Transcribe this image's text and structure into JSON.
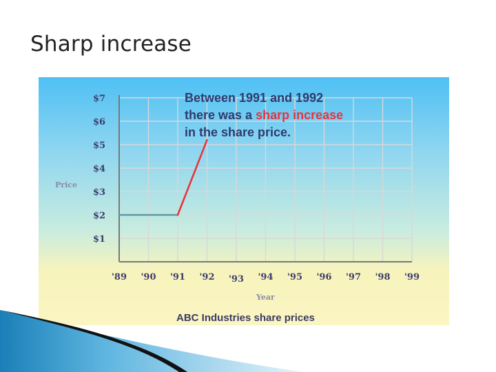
{
  "slide": {
    "title": "Sharp increase"
  },
  "chart_data": {
    "type": "line",
    "title": "ABC Industries share prices",
    "xlabel": "Year",
    "ylabel": "Price",
    "categories": [
      "'89",
      "'90",
      "'91",
      "'92",
      "'93",
      "'94",
      "'95",
      "'96",
      "'97",
      "'98",
      "'99"
    ],
    "y_tick_labels": [
      "$1",
      "$2",
      "$3",
      "$4",
      "$5",
      "$6",
      "$7"
    ],
    "ylim": [
      0,
      7
    ],
    "grid": true,
    "series": [
      {
        "segment": "flat",
        "color": "#5f9aa8",
        "points": [
          [
            1989,
            2
          ],
          [
            1991,
            2
          ]
        ]
      },
      {
        "segment": "rise",
        "color": "#e8343c",
        "points": [
          [
            1991,
            2
          ],
          [
            1992,
            5.2
          ]
        ]
      }
    ],
    "annotation": {
      "line1": "Between 1991 and 1992",
      "line2_before": "there was a ",
      "line2_highlight": "sharp increase",
      "line3": "in the share price.",
      "highlight_color": "#e8343c",
      "text_color": "#2e3b6e"
    }
  }
}
